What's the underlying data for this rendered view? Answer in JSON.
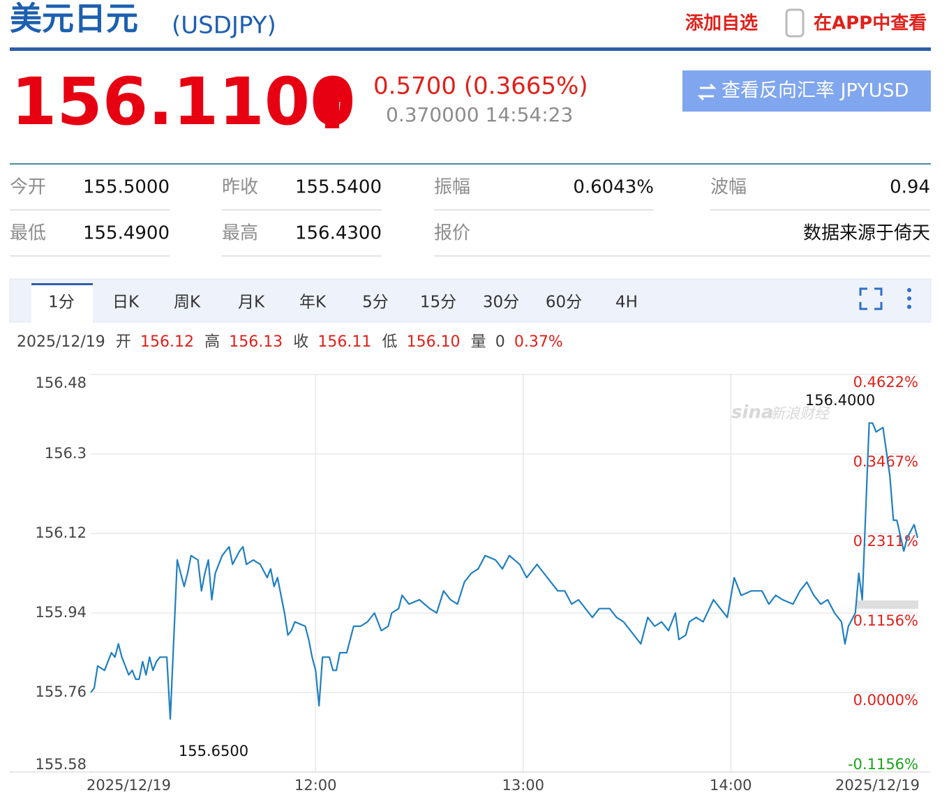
{
  "header": {
    "title": "美元日元",
    "code": "(USDJPY)",
    "add_watchlist": "添加自选",
    "view_in_app": "在APP中查看"
  },
  "quote": {
    "price": "156.1100",
    "change": "0.5700 (0.3665%)",
    "sub": "0.370000 14:54:23",
    "reverse_button": "查看反向汇率 JPYUSD"
  },
  "stats": [
    {
      "label": "今开",
      "value": "155.5000"
    },
    {
      "label": "昨收",
      "value": "155.5400"
    },
    {
      "label": "振幅",
      "value": "0.6043%"
    },
    {
      "label": "波幅",
      "value": "0.94"
    },
    {
      "label": "最低",
      "value": "155.4900"
    },
    {
      "label": "最高",
      "value": "156.4300"
    },
    {
      "label": "报价",
      "value": "数据来源于倚天"
    }
  ],
  "tabs": [
    "1分",
    "日K",
    "周K",
    "月K",
    "年K",
    "5分",
    "15分",
    "30分",
    "60分",
    "4H"
  ],
  "ohlc": {
    "date": "2025/12/19",
    "open_label": "开",
    "open": "156.12",
    "high_label": "高",
    "high": "156.13",
    "close_label": "收",
    "close": "156.11",
    "low_label": "低",
    "low": "156.10",
    "volume_label": "量",
    "volume": "0",
    "change_pct": "0.37%"
  },
  "chart_data": {
    "type": "line",
    "x": [
      "10:55",
      "10:56",
      "10:57",
      "10:59",
      "11:01",
      "11:02",
      "11:03",
      "11:04",
      "11:05",
      "11:06",
      "11:07",
      "11:08",
      "11:09",
      "11:10",
      "11:11",
      "11:12",
      "11:13",
      "11:14",
      "11:15",
      "11:17",
      "11:18",
      "11:20",
      "11:21",
      "11:22",
      "11:23",
      "11:24",
      "11:26",
      "11:27",
      "11:28",
      "11:29",
      "11:30",
      "11:31",
      "11:32",
      "11:33",
      "11:35",
      "11:36",
      "11:38",
      "11:39",
      "11:40",
      "11:42",
      "11:44",
      "11:46",
      "11:47",
      "11:48",
      "11:49",
      "11:51",
      "11:52",
      "11:53",
      "11:54",
      "11:57",
      "11:58",
      "11:59",
      "12:00",
      "12:01",
      "12:02",
      "12:04",
      "12:05",
      "12:06",
      "12:07",
      "12:09",
      "12:11",
      "12:13",
      "12:15",
      "12:17",
      "12:19",
      "12:21",
      "12:22",
      "12:24",
      "12:25",
      "12:27",
      "12:30",
      "12:33",
      "12:35",
      "12:37",
      "12:39",
      "12:41",
      "12:43",
      "12:45",
      "12:47",
      "12:49",
      "12:52",
      "12:54",
      "12:56",
      "12:59",
      "13:01",
      "13:03",
      "13:04",
      "13:06",
      "13:08",
      "13:10",
      "13:12",
      "13:14",
      "13:16",
      "13:18",
      "13:20",
      "13:22",
      "13:25",
      "13:27",
      "13:29",
      "13:31",
      "13:33",
      "13:34",
      "13:36",
      "13:38",
      "13:40",
      "13:42",
      "13:44",
      "13:45",
      "13:47",
      "13:48",
      "13:50",
      "13:52",
      "13:55",
      "13:57",
      "13:59",
      "14:01",
      "14:03",
      "14:06",
      "14:09",
      "14:11",
      "14:13",
      "14:15",
      "14:18",
      "14:20",
      "14:22",
      "14:24",
      "14:26",
      "14:28",
      "14:30",
      "14:32",
      "14:33",
      "14:34",
      "14:36",
      "14:37",
      "14:38",
      "14:40",
      "14:41",
      "14:42",
      "14:44",
      "14:46",
      "14:47",
      "14:48",
      "14:50",
      "14:51",
      "14:53",
      "14:54"
    ],
    "series": [
      {
        "color": "#1f7fc0",
        "values": [
          155.76,
          155.77,
          155.82,
          155.81,
          155.85,
          155.84,
          155.87,
          155.84,
          155.82,
          155.8,
          155.81,
          155.79,
          155.79,
          155.83,
          155.8,
          155.84,
          155.81,
          155.83,
          155.84,
          155.84,
          155.7,
          156.06,
          156.03,
          156.0,
          156.03,
          156.07,
          156.06,
          155.99,
          156.03,
          156.06,
          155.97,
          156.03,
          156.05,
          156.07,
          156.09,
          156.05,
          156.08,
          156.09,
          156.05,
          156.06,
          156.05,
          156.02,
          156.04,
          156.0,
          156.02,
          155.94,
          155.89,
          155.9,
          155.92,
          155.91,
          155.88,
          155.84,
          155.81,
          155.73,
          155.84,
          155.84,
          155.81,
          155.81,
          155.85,
          155.85,
          155.91,
          155.91,
          155.92,
          155.94,
          155.9,
          155.91,
          155.94,
          155.95,
          155.98,
          155.96,
          155.97,
          155.95,
          155.94,
          155.99,
          155.97,
          155.96,
          156.01,
          156.03,
          156.04,
          156.07,
          156.06,
          156.04,
          156.07,
          156.05,
          156.02,
          156.04,
          156.05,
          156.03,
          156.01,
          155.99,
          155.99,
          155.96,
          155.97,
          155.95,
          155.93,
          155.95,
          155.95,
          155.93,
          155.92,
          155.9,
          155.88,
          155.87,
          155.93,
          155.91,
          155.92,
          155.9,
          155.94,
          155.88,
          155.89,
          155.92,
          155.93,
          155.92,
          155.97,
          155.95,
          155.93,
          156.02,
          155.98,
          155.99,
          155.99,
          155.96,
          155.98,
          155.97,
          155.96,
          155.99,
          156.01,
          155.98,
          155.96,
          155.97,
          155.94,
          155.92,
          155.87,
          155.91,
          155.94,
          156.03,
          155.97,
          156.37,
          156.37,
          156.35,
          156.36,
          156.25,
          156.15,
          156.15,
          156.08,
          156.11,
          156.14,
          156.11
        ]
      }
    ],
    "xlim": [
      "10:55",
      "14:54"
    ],
    "xticks": [
      {
        "value": "10:55",
        "label": "2025/12/19"
      },
      "12:00",
      "13:00",
      "14:00",
      {
        "value": "14:54",
        "label": "2025/12/19"
      }
    ],
    "ylim": [
      155.58,
      156.48
    ],
    "yticks": [
      156.48,
      156.3,
      156.12,
      155.94,
      155.76,
      155.58
    ],
    "y2lim": [
      -0.1156,
      0.4622
    ],
    "y2ticks": [
      {
        "value": 0.4622,
        "label": "0.4622%"
      },
      {
        "value": 0.3467,
        "label": "0.3467%"
      },
      {
        "value": 0.2311,
        "label": "0.2311%"
      },
      {
        "value": 0.1156,
        "label": "0.1156%"
      },
      {
        "value": 0,
        "label": "0.0000%"
      },
      {
        "value": -0.1156,
        "label": "-0.1156%"
      }
    ],
    "grid": true,
    "annotations": [
      "156.4000",
      "155.6500"
    ],
    "watermark": [
      "sina",
      "新浪财经"
    ]
  }
}
